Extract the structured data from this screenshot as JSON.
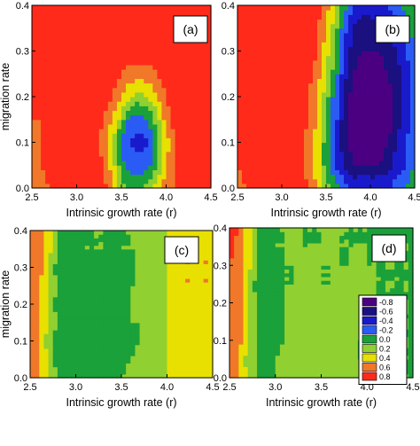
{
  "colors": {
    "-0.8": "#4b0082",
    "-0.6": "#1a1080",
    "-0.4": "#1a1acd",
    "-0.2": "#2a5cf5",
    "0.0": "#1aa13a",
    "0.2": "#90d030",
    "0.4": "#e8e000",
    "0.6": "#f07828",
    "0.8": "#ff2a1a"
  },
  "chart_data": [
    {
      "panel": "(a)",
      "type": "heatmap",
      "xlabel": "Intrinsic growth rate (r)",
      "ylabel": "migration rate",
      "xlim": [
        2.5,
        4.5
      ],
      "ylim": [
        0.0,
        0.4
      ],
      "xticks": [
        "2.5",
        "3.0",
        "3.5",
        "4.0",
        "4.5"
      ],
      "yticks": [
        "0.0",
        "0.1",
        "0.2",
        "0.3",
        "0.4"
      ],
      "x": [
        2.5,
        2.6,
        2.7,
        2.8,
        2.9,
        3.0,
        3.1,
        3.2,
        3.3,
        3.4,
        3.5,
        3.6,
        3.7,
        3.8,
        3.9,
        4.0,
        4.1,
        4.2,
        4.3,
        4.4,
        4.5
      ],
      "y": [
        0.0,
        0.05,
        0.1,
        0.15,
        0.2,
        0.25,
        0.3,
        0.35,
        0.4
      ],
      "z": [
        [
          0.5,
          0.6,
          0.7,
          0.8,
          0.8,
          0.8,
          0.8,
          0.8,
          0.8,
          0.5,
          0.2,
          0.0,
          0.1,
          0.2,
          0.4,
          0.6,
          0.7,
          0.8,
          0.8,
          0.8,
          0.8
        ],
        [
          0.6,
          0.7,
          0.8,
          0.8,
          0.8,
          0.8,
          0.8,
          0.8,
          0.7,
          0.4,
          0.0,
          -0.2,
          -0.2,
          -0.2,
          0.1,
          0.5,
          0.7,
          0.8,
          0.8,
          0.8,
          0.8
        ],
        [
          0.6,
          0.7,
          0.8,
          0.8,
          0.8,
          0.8,
          0.8,
          0.8,
          0.6,
          0.3,
          -0.2,
          -0.3,
          -0.4,
          -0.3,
          0.0,
          0.4,
          0.7,
          0.8,
          0.8,
          0.8,
          0.8
        ],
        [
          0.7,
          0.7,
          0.8,
          0.8,
          0.8,
          0.8,
          0.8,
          0.8,
          0.7,
          0.5,
          0.2,
          -0.2,
          -0.2,
          -0.1,
          0.2,
          0.6,
          0.8,
          0.8,
          0.8,
          0.8,
          0.8
        ],
        [
          0.7,
          0.8,
          0.8,
          0.8,
          0.8,
          0.8,
          0.8,
          0.8,
          0.8,
          0.7,
          0.5,
          0.3,
          0.2,
          0.3,
          0.5,
          0.7,
          0.8,
          0.8,
          0.8,
          0.8,
          0.8
        ],
        [
          0.7,
          0.8,
          0.8,
          0.8,
          0.8,
          0.8,
          0.8,
          0.8,
          0.8,
          0.8,
          0.7,
          0.6,
          0.6,
          0.6,
          0.7,
          0.8,
          0.8,
          0.8,
          0.8,
          0.8,
          0.8
        ],
        [
          0.7,
          0.8,
          0.8,
          0.8,
          0.8,
          0.8,
          0.8,
          0.8,
          0.8,
          0.8,
          0.8,
          0.8,
          0.8,
          0.8,
          0.8,
          0.8,
          0.8,
          0.8,
          0.8,
          0.8,
          0.8
        ],
        [
          0.8,
          0.8,
          0.8,
          0.8,
          0.8,
          0.8,
          0.8,
          0.8,
          0.8,
          0.8,
          0.8,
          0.8,
          0.8,
          0.8,
          0.8,
          0.8,
          0.8,
          0.8,
          0.8,
          0.8,
          0.8
        ],
        [
          0.8,
          0.8,
          0.8,
          0.8,
          0.8,
          0.8,
          0.8,
          0.8,
          0.8,
          0.8,
          0.8,
          0.8,
          0.8,
          0.8,
          0.8,
          0.8,
          0.8,
          0.8,
          0.8,
          0.8,
          0.8
        ]
      ]
    },
    {
      "panel": "(b)",
      "type": "heatmap",
      "xlabel": "Intrinsic growth rate (r)",
      "ylabel": "",
      "xlim": [
        2.5,
        4.5
      ],
      "ylim": [
        0.0,
        0.4
      ],
      "xticks": [
        "2.5",
        "3.0",
        "3.5",
        "4.0",
        "4.5"
      ],
      "yticks": [
        "0.0",
        "0.1",
        "0.2",
        "0.3",
        "0.4"
      ],
      "x": [
        2.5,
        2.6,
        2.7,
        2.8,
        2.9,
        3.0,
        3.1,
        3.2,
        3.3,
        3.4,
        3.5,
        3.6,
        3.7,
        3.8,
        3.9,
        4.0,
        4.1,
        4.2,
        4.3,
        4.4,
        4.5
      ],
      "y": [
        0.0,
        0.05,
        0.1,
        0.15,
        0.2,
        0.25,
        0.3,
        0.35,
        0.4
      ],
      "z": [
        [
          0.6,
          0.7,
          0.8,
          0.8,
          0.8,
          0.8,
          0.8,
          0.8,
          0.7,
          0.5,
          0.2,
          0.0,
          -0.2,
          -0.3,
          -0.3,
          -0.3,
          -0.3,
          -0.3,
          -0.2,
          -0.1,
          0.1
        ],
        [
          0.7,
          0.8,
          0.8,
          0.8,
          0.8,
          0.8,
          0.8,
          0.8,
          0.6,
          0.4,
          0.0,
          -0.3,
          -0.5,
          -0.7,
          -0.7,
          -0.7,
          -0.7,
          -0.6,
          -0.4,
          -0.3,
          -0.1
        ],
        [
          0.7,
          0.8,
          0.8,
          0.8,
          0.8,
          0.8,
          0.8,
          0.8,
          0.6,
          0.4,
          0.0,
          -0.3,
          -0.6,
          -0.8,
          -0.8,
          -0.8,
          -0.8,
          -0.7,
          -0.5,
          -0.3,
          -0.2
        ],
        [
          0.7,
          0.8,
          0.8,
          0.8,
          0.8,
          0.8,
          0.8,
          0.8,
          0.7,
          0.5,
          0.1,
          -0.2,
          -0.6,
          -0.8,
          -0.8,
          -0.8,
          -0.8,
          -0.8,
          -0.6,
          -0.4,
          -0.2
        ],
        [
          0.7,
          0.8,
          0.8,
          0.8,
          0.8,
          0.8,
          0.8,
          0.8,
          0.7,
          0.5,
          0.2,
          -0.2,
          -0.5,
          -0.8,
          -0.8,
          -0.8,
          -0.8,
          -0.8,
          -0.6,
          -0.4,
          -0.2
        ],
        [
          0.8,
          0.8,
          0.8,
          0.8,
          0.8,
          0.8,
          0.8,
          0.8,
          0.8,
          0.6,
          0.3,
          0.0,
          -0.4,
          -0.7,
          -0.8,
          -0.8,
          -0.8,
          -0.7,
          -0.6,
          -0.4,
          -0.2
        ],
        [
          0.8,
          0.8,
          0.8,
          0.8,
          0.8,
          0.8,
          0.8,
          0.8,
          0.8,
          0.7,
          0.4,
          0.1,
          -0.3,
          -0.6,
          -0.7,
          -0.7,
          -0.7,
          -0.6,
          -0.5,
          -0.3,
          -0.1
        ],
        [
          0.8,
          0.8,
          0.8,
          0.8,
          0.8,
          0.8,
          0.8,
          0.8,
          0.8,
          0.7,
          0.5,
          0.2,
          -0.2,
          -0.5,
          -0.6,
          -0.6,
          -0.6,
          -0.5,
          -0.4,
          -0.2,
          0.0
        ],
        [
          0.8,
          0.8,
          0.8,
          0.8,
          0.8,
          0.8,
          0.8,
          0.8,
          0.8,
          0.8,
          0.6,
          0.3,
          0.0,
          -0.3,
          -0.4,
          -0.4,
          -0.4,
          -0.3,
          -0.2,
          0.0,
          0.1
        ]
      ]
    },
    {
      "panel": "(c)",
      "type": "heatmap",
      "xlabel": "Intrinsic growth rate (r)",
      "ylabel": "migration rate",
      "xlim": [
        2.5,
        4.5
      ],
      "ylim": [
        0.0,
        0.4
      ],
      "xticks": [
        "2.5",
        "3.0",
        "3.5",
        "4.0",
        "4.5"
      ],
      "yticks": [
        "0.0",
        "0.1",
        "0.2",
        "0.3",
        "0.4"
      ],
      "x": [
        2.5,
        2.6,
        2.7,
        2.8,
        2.9,
        3.0,
        3.1,
        3.2,
        3.3,
        3.4,
        3.5,
        3.6,
        3.7,
        3.8,
        3.9,
        4.0,
        4.1,
        4.2,
        4.3,
        4.4,
        4.5
      ],
      "y": [
        0.0,
        0.05,
        0.1,
        0.15,
        0.2,
        0.25,
        0.3,
        0.35,
        0.4
      ],
      "z": [
        [
          0.6,
          0.5,
          0.3,
          0.1,
          0.0,
          0.1,
          0.1,
          0.0,
          0.1,
          0.0,
          0.1,
          0.2,
          0.1,
          0.2,
          0.2,
          0.3,
          0.4,
          0.5,
          0.5,
          0.5,
          0.5
        ],
        [
          0.6,
          0.5,
          0.3,
          0.0,
          -0.1,
          0.1,
          0.0,
          0.1,
          0.0,
          0.1,
          0.0,
          0.1,
          0.2,
          0.1,
          0.2,
          0.3,
          0.4,
          0.5,
          0.5,
          0.5,
          0.5
        ],
        [
          0.6,
          0.5,
          0.2,
          0.0,
          0.1,
          0.0,
          0.1,
          0.0,
          0.1,
          -0.1,
          0.1,
          0.0,
          0.1,
          0.2,
          0.2,
          0.3,
          0.4,
          0.5,
          0.5,
          0.5,
          0.5
        ],
        [
          0.6,
          0.5,
          0.3,
          0.1,
          0.0,
          0.1,
          0.0,
          0.1,
          0.0,
          0.1,
          0.0,
          0.1,
          0.1,
          0.2,
          0.2,
          0.3,
          0.4,
          0.5,
          0.5,
          0.5,
          0.5
        ],
        [
          0.7,
          0.5,
          0.3,
          0.0,
          0.1,
          0.1,
          0.0,
          0.1,
          0.1,
          0.0,
          0.1,
          0.1,
          0.2,
          0.1,
          0.2,
          0.3,
          0.4,
          0.5,
          0.5,
          0.5,
          0.5
        ],
        [
          0.7,
          0.5,
          0.3,
          0.1,
          -0.1,
          0.0,
          0.1,
          0.0,
          0.1,
          0.1,
          0.0,
          0.1,
          0.1,
          0.2,
          0.2,
          0.3,
          0.4,
          0.5,
          0.5,
          0.5,
          0.5
        ],
        [
          0.7,
          0.6,
          0.3,
          0.0,
          0.0,
          0.1,
          0.0,
          0.1,
          0.0,
          0.1,
          0.1,
          0.0,
          0.2,
          0.1,
          0.2,
          0.3,
          0.4,
          0.5,
          0.5,
          0.5,
          0.5
        ],
        [
          0.7,
          0.6,
          0.4,
          0.1,
          0.0,
          0.0,
          0.1,
          0.1,
          0.1,
          0.0,
          0.1,
          0.1,
          0.1,
          0.2,
          0.2,
          0.3,
          0.4,
          0.5,
          0.5,
          0.5,
          0.5
        ],
        [
          0.7,
          0.6,
          0.4,
          0.1,
          0.1,
          0.1,
          0.1,
          0.1,
          0.1,
          0.1,
          0.1,
          0.1,
          0.2,
          0.2,
          0.2,
          0.3,
          0.4,
          0.5,
          0.5,
          0.5,
          0.5
        ]
      ]
    },
    {
      "panel": "(d)",
      "type": "heatmap",
      "xlabel": "Intrinsic growth rate (r)",
      "ylabel": "",
      "xlim": [
        2.5,
        4.5
      ],
      "ylim": [
        0.0,
        0.4
      ],
      "xticks": [
        "2.5",
        "3.0",
        "3.5",
        "4.0",
        "4.5"
      ],
      "yticks": [
        "0.0",
        "0.1",
        "0.2",
        "0.3",
        "0.4"
      ],
      "x": [
        2.5,
        2.6,
        2.7,
        2.8,
        2.9,
        3.0,
        3.1,
        3.2,
        3.3,
        3.4,
        3.5,
        3.6,
        3.7,
        3.8,
        3.9,
        4.0,
        4.1,
        4.2,
        4.3,
        4.4,
        4.5
      ],
      "y": [
        0.0,
        0.05,
        0.1,
        0.15,
        0.2,
        0.25,
        0.3,
        0.35,
        0.4
      ],
      "z": [
        [
          0.7,
          0.5,
          0.3,
          0.1,
          0.0,
          0.1,
          0.1,
          0.1,
          0.2,
          0.1,
          0.1,
          0.2,
          0.1,
          0.1,
          0.2,
          0.1,
          0.1,
          0.1,
          0.1,
          0.1,
          0.1
        ],
        [
          0.7,
          0.5,
          0.2,
          0.1,
          0.0,
          0.1,
          0.2,
          0.1,
          0.1,
          0.2,
          0.1,
          0.1,
          0.2,
          0.1,
          0.1,
          0.1,
          0.2,
          0.1,
          0.1,
          0.1,
          0.1
        ],
        [
          0.7,
          0.6,
          0.3,
          0.1,
          0.0,
          0.0,
          0.1,
          0.2,
          0.1,
          0.1,
          0.2,
          0.1,
          0.1,
          0.2,
          0.1,
          0.1,
          0.1,
          0.1,
          0.1,
          0.1,
          0.1
        ],
        [
          0.7,
          0.6,
          0.3,
          0.1,
          -0.1,
          0.0,
          0.1,
          0.1,
          0.2,
          0.1,
          0.1,
          0.2,
          0.1,
          0.1,
          0.1,
          0.2,
          0.1,
          0.1,
          0.1,
          0.1,
          0.1
        ],
        [
          0.7,
          0.6,
          0.3,
          0.1,
          0.0,
          0.0,
          0.1,
          0.2,
          0.1,
          0.1,
          0.2,
          0.1,
          0.1,
          0.2,
          0.1,
          0.1,
          0.1,
          0.1,
          0.1,
          0.1,
          0.1
        ],
        [
          0.7,
          0.6,
          0.3,
          0.0,
          -0.1,
          0.0,
          0.1,
          0.1,
          0.2,
          0.1,
          0.1,
          0.1,
          0.2,
          0.1,
          0.1,
          0.2,
          0.1,
          0.1,
          0.1,
          0.1,
          0.1
        ],
        [
          0.7,
          0.6,
          0.4,
          0.1,
          0.0,
          0.0,
          0.1,
          0.1,
          0.1,
          0.2,
          0.1,
          0.1,
          0.1,
          0.1,
          0.2,
          0.1,
          0.1,
          0.1,
          0.1,
          0.1,
          0.1
        ],
        [
          0.8,
          0.6,
          0.4,
          0.1,
          0.0,
          0.1,
          0.1,
          0.2,
          0.1,
          0.1,
          0.1,
          0.2,
          0.1,
          0.1,
          0.1,
          0.1,
          0.1,
          0.1,
          0.1,
          0.1,
          0.1
        ],
        [
          0.8,
          0.7,
          0.4,
          0.1,
          0.0,
          0.1,
          0.1,
          0.1,
          0.1,
          0.1,
          0.1,
          0.1,
          0.1,
          0.1,
          0.1,
          0.1,
          0.1,
          0.1,
          0.1,
          0.1,
          0.1
        ]
      ]
    }
  ],
  "legend": {
    "entries": [
      {
        "label": "-0.8",
        "value": -0.8
      },
      {
        "label": "-0.6",
        "value": -0.6
      },
      {
        "label": "-0.4",
        "value": -0.4
      },
      {
        "label": "-0.2",
        "value": -0.2
      },
      {
        "label": "0.0",
        "value": 0.0
      },
      {
        "label": "0.2",
        "value": 0.2
      },
      {
        "label": "0.4",
        "value": 0.4
      },
      {
        "label": "0.6",
        "value": 0.6
      },
      {
        "label": "0.8",
        "value": 0.8
      }
    ]
  }
}
